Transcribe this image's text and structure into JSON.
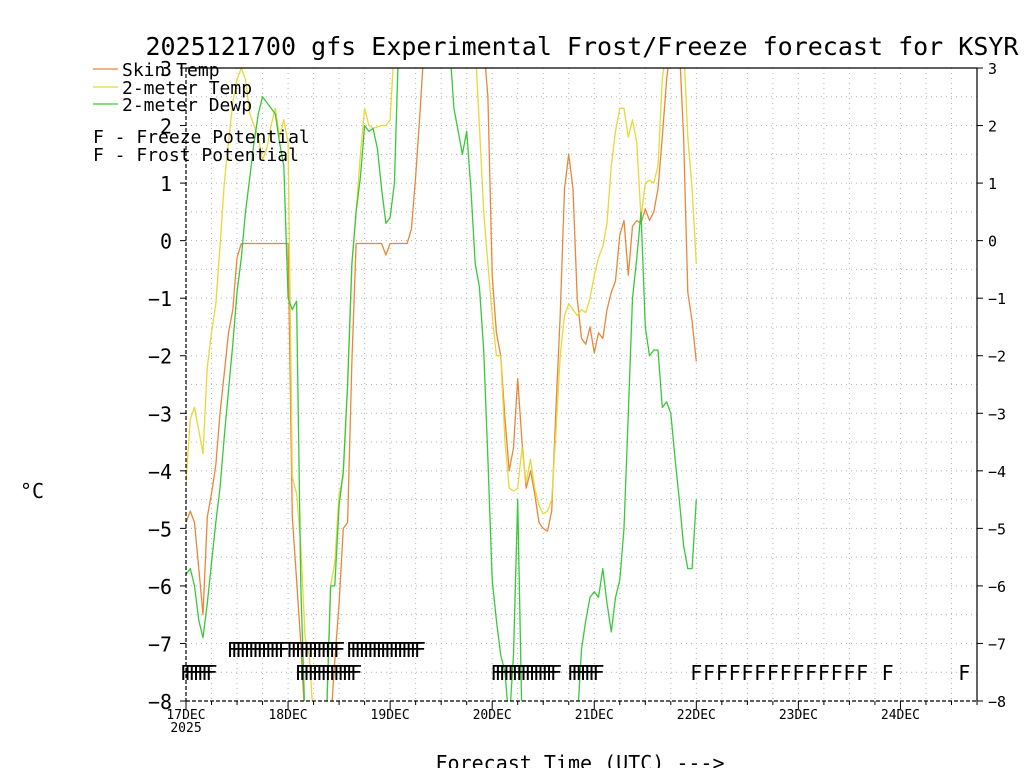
{
  "chart_data": {
    "type": "line",
    "title": "2025121700 gfs Experimental Frost/Freeze forecast for KSYR",
    "ylabel": "°C",
    "xlabel": "Forecast Time (UTC) --->",
    "ylim": [
      -8,
      3
    ],
    "xlim_hours": [
      0,
      186
    ],
    "y_ticks": [
      -8,
      -7,
      -6,
      -5,
      -4,
      -3,
      -2,
      -1,
      0,
      1,
      2,
      3
    ],
    "x_ticks": [
      {
        "h": 0,
        "label": "17DEC",
        "sub": "2025"
      },
      {
        "h": 24,
        "label": "18DEC",
        "sub": ""
      },
      {
        "h": 48,
        "label": "19DEC",
        "sub": ""
      },
      {
        "h": 72,
        "label": "20DEC",
        "sub": ""
      },
      {
        "h": 96,
        "label": "21DEC",
        "sub": ""
      },
      {
        "h": 120,
        "label": "22DEC",
        "sub": ""
      },
      {
        "h": 144,
        "label": "23DEC",
        "sub": ""
      },
      {
        "h": 168,
        "label": "24DEC",
        "sub": ""
      }
    ],
    "grid": true,
    "legend": "top-left",
    "series": [
      {
        "name": "Skin Temp",
        "color": "#e8873a",
        "points": [
          [
            0,
            -4.9
          ],
          [
            1,
            -4.7
          ],
          [
            2,
            -4.9
          ],
          [
            3,
            -5.7
          ],
          [
            4,
            -6.5
          ],
          [
            5,
            -4.8
          ],
          [
            6,
            -4.4
          ],
          [
            7,
            -3.9
          ],
          [
            8,
            -3.0
          ],
          [
            9,
            -2.3
          ],
          [
            10,
            -1.6
          ],
          [
            11,
            -1.2
          ],
          [
            12,
            -0.3
          ],
          [
            13,
            -0.05
          ],
          [
            16,
            -0.05
          ],
          [
            20,
            -0.05
          ],
          [
            23,
            -0.05
          ],
          [
            24,
            -0.05
          ],
          [
            25,
            -4.8
          ],
          [
            26,
            -5.9
          ],
          [
            27,
            -7.0
          ],
          [
            28,
            -8.4
          ],
          [
            32,
            -8.4
          ],
          [
            34,
            -8.4
          ],
          [
            35,
            -7.3
          ],
          [
            36,
            -6.3
          ],
          [
            37,
            -5.0
          ],
          [
            38,
            -4.9
          ],
          [
            39,
            -2.1
          ],
          [
            40,
            -0.05
          ],
          [
            44,
            -0.05
          ],
          [
            46,
            -0.05
          ],
          [
            47,
            -0.25
          ],
          [
            48,
            -0.05
          ],
          [
            52,
            -0.05
          ],
          [
            53,
            0.2
          ],
          [
            54,
            1.1
          ],
          [
            55,
            2.2
          ],
          [
            56,
            3.4
          ],
          [
            70,
            3.4
          ],
          [
            71,
            2.5
          ],
          [
            72,
            -0.6
          ],
          [
            73,
            -1.6
          ],
          [
            74,
            -2.0
          ],
          [
            75,
            -3.1
          ],
          [
            76,
            -4.0
          ],
          [
            77,
            -3.6
          ],
          [
            78,
            -2.4
          ],
          [
            79,
            -3.5
          ],
          [
            80,
            -4.3
          ],
          [
            81,
            -4.0
          ],
          [
            82,
            -4.4
          ],
          [
            83,
            -4.9
          ],
          [
            84,
            -5.0
          ],
          [
            85,
            -5.05
          ],
          [
            86,
            -4.7
          ],
          [
            87,
            -2.9
          ],
          [
            88,
            -1.3
          ],
          [
            89,
            0.9
          ],
          [
            90,
            1.5
          ],
          [
            91,
            0.9
          ],
          [
            92,
            -1.0
          ],
          [
            93,
            -1.7
          ],
          [
            94,
            -1.8
          ],
          [
            95,
            -1.5
          ],
          [
            96,
            -1.95
          ],
          [
            97,
            -1.6
          ],
          [
            98,
            -1.7
          ],
          [
            99,
            -1.2
          ],
          [
            100,
            -0.9
          ],
          [
            101,
            -0.7
          ],
          [
            102,
            0.1
          ],
          [
            103,
            0.35
          ],
          [
            104,
            -0.6
          ],
          [
            105,
            0.25
          ],
          [
            106,
            0.35
          ],
          [
            107,
            0.3
          ],
          [
            108,
            0.55
          ],
          [
            109,
            0.35
          ],
          [
            110,
            0.5
          ],
          [
            111,
            0.9
          ],
          [
            112,
            1.8
          ],
          [
            113,
            2.8
          ],
          [
            114,
            3.4
          ],
          [
            116,
            3.4
          ],
          [
            117,
            1.8
          ],
          [
            118,
            -0.9
          ],
          [
            119,
            -1.4
          ],
          [
            120,
            -2.1
          ]
        ]
      },
      {
        "name": "2-meter Temp",
        "color": "#e8d83a",
        "points": [
          [
            0,
            -4.2
          ],
          [
            1,
            -3.1
          ],
          [
            2,
            -2.9
          ],
          [
            3,
            -3.3
          ],
          [
            4,
            -3.7
          ],
          [
            5,
            -2.2
          ],
          [
            6,
            -1.6
          ],
          [
            7,
            -1.1
          ],
          [
            8,
            -0.1
          ],
          [
            9,
            1.0
          ],
          [
            10,
            1.7
          ],
          [
            11,
            2.4
          ],
          [
            12,
            2.8
          ],
          [
            13,
            3.0
          ],
          [
            14,
            2.8
          ],
          [
            15,
            2.2
          ],
          [
            16,
            2.0
          ],
          [
            17,
            1.8
          ],
          [
            18,
            1.4
          ],
          [
            19,
            1.6
          ],
          [
            20,
            2.0
          ],
          [
            21,
            2.3
          ],
          [
            22,
            1.8
          ],
          [
            23,
            2.1
          ],
          [
            24,
            1.7
          ],
          [
            25,
            -4.1
          ],
          [
            26,
            -4.4
          ],
          [
            27,
            -5.3
          ],
          [
            28,
            -6.9
          ],
          [
            29,
            -7.2
          ],
          [
            30,
            -8.4
          ],
          [
            33,
            -8.4
          ],
          [
            34,
            -6.0
          ],
          [
            35,
            -5.6
          ],
          [
            36,
            -4.4
          ],
          [
            37,
            -4.1
          ],
          [
            38,
            -2.5
          ],
          [
            39,
            -0.4
          ],
          [
            40,
            0.5
          ],
          [
            41,
            1.5
          ],
          [
            42,
            2.3
          ],
          [
            43,
            2.0
          ],
          [
            44,
            1.95
          ],
          [
            46,
            2.0
          ],
          [
            47,
            2.0
          ],
          [
            48,
            2.1
          ],
          [
            49,
            3.4
          ],
          [
            68,
            3.4
          ],
          [
            69,
            2.0
          ],
          [
            70,
            0.5
          ],
          [
            71,
            -0.4
          ],
          [
            72,
            -1.3
          ],
          [
            73,
            -2.0
          ],
          [
            74,
            -2.0
          ],
          [
            75,
            -3.5
          ],
          [
            76,
            -4.3
          ],
          [
            77,
            -4.35
          ],
          [
            78,
            -4.3
          ],
          [
            79,
            -3.6
          ],
          [
            80,
            -4.2
          ],
          [
            81,
            -3.8
          ],
          [
            82,
            -4.3
          ],
          [
            83,
            -4.6
          ],
          [
            84,
            -4.75
          ],
          [
            85,
            -4.7
          ],
          [
            86,
            -4.5
          ],
          [
            87,
            -3.3
          ],
          [
            88,
            -2.0
          ],
          [
            89,
            -1.3
          ],
          [
            90,
            -1.1
          ],
          [
            91,
            -1.2
          ],
          [
            92,
            -1.3
          ],
          [
            93,
            -1.2
          ],
          [
            94,
            -1.25
          ],
          [
            95,
            -1.0
          ],
          [
            96,
            -0.6
          ],
          [
            97,
            -0.3
          ],
          [
            98,
            -0.1
          ],
          [
            99,
            0.3
          ],
          [
            100,
            1.3
          ],
          [
            101,
            1.9
          ],
          [
            102,
            2.3
          ],
          [
            103,
            2.3
          ],
          [
            104,
            1.8
          ],
          [
            105,
            2.1
          ],
          [
            106,
            1.7
          ],
          [
            107,
            0.4
          ],
          [
            108,
            1.0
          ],
          [
            109,
            1.05
          ],
          [
            110,
            1.0
          ],
          [
            111,
            1.3
          ],
          [
            112,
            2.8
          ],
          [
            113,
            3.4
          ],
          [
            117,
            3.4
          ],
          [
            118,
            1.8
          ],
          [
            119,
            0.9
          ],
          [
            120,
            -0.4
          ]
        ]
      },
      {
        "name": "2-meter Dewp",
        "color": "#3ac83a",
        "points": [
          [
            0,
            -5.8
          ],
          [
            1,
            -5.7
          ],
          [
            2,
            -6.0
          ],
          [
            3,
            -6.6
          ],
          [
            4,
            -6.9
          ],
          [
            5,
            -6.3
          ],
          [
            6,
            -5.6
          ],
          [
            7,
            -4.9
          ],
          [
            8,
            -4.3
          ],
          [
            9,
            -3.4
          ],
          [
            10,
            -2.6
          ],
          [
            11,
            -1.8
          ],
          [
            12,
            -0.9
          ],
          [
            13,
            -0.3
          ],
          [
            14,
            0.5
          ],
          [
            15,
            1.1
          ],
          [
            16,
            1.7
          ],
          [
            17,
            2.2
          ],
          [
            18,
            2.5
          ],
          [
            19,
            2.4
          ],
          [
            20,
            2.3
          ],
          [
            21,
            2.2
          ],
          [
            22,
            1.7
          ],
          [
            23,
            1.3
          ],
          [
            24,
            -1.0
          ],
          [
            25,
            -1.2
          ],
          [
            26,
            -1.05
          ],
          [
            27,
            -6.0
          ],
          [
            28,
            -8.4
          ],
          [
            33,
            -8.4
          ],
          [
            34,
            -6.0
          ],
          [
            35,
            -6.0
          ],
          [
            36,
            -4.6
          ],
          [
            37,
            -4.0
          ],
          [
            38,
            -2.5
          ],
          [
            39,
            -0.4
          ],
          [
            40,
            0.5
          ],
          [
            41,
            1.1
          ],
          [
            42,
            2.0
          ],
          [
            43,
            1.9
          ],
          [
            44,
            1.95
          ],
          [
            45,
            1.6
          ],
          [
            46,
            0.9
          ],
          [
            47,
            0.3
          ],
          [
            48,
            0.4
          ],
          [
            49,
            1.0
          ],
          [
            50,
            3.4
          ],
          [
            62,
            3.4
          ],
          [
            63,
            2.3
          ],
          [
            64,
            1.9
          ],
          [
            65,
            1.5
          ],
          [
            66,
            1.9
          ],
          [
            67,
            0.9
          ],
          [
            68,
            -0.4
          ],
          [
            69,
            -0.8
          ],
          [
            70,
            -1.9
          ],
          [
            71,
            -3.8
          ],
          [
            72,
            -5.9
          ],
          [
            73,
            -6.6
          ],
          [
            74,
            -7.2
          ],
          [
            75,
            -7.5
          ],
          [
            76,
            -8.4
          ],
          [
            77,
            -7.2
          ],
          [
            78,
            -4.5
          ],
          [
            79,
            -8.4
          ],
          [
            92,
            -8.4
          ],
          [
            93,
            -7.1
          ],
          [
            94,
            -6.6
          ],
          [
            95,
            -6.2
          ],
          [
            96,
            -6.1
          ],
          [
            97,
            -6.2
          ],
          [
            98,
            -5.7
          ],
          [
            99,
            -6.3
          ],
          [
            100,
            -6.8
          ],
          [
            101,
            -6.2
          ],
          [
            102,
            -5.9
          ],
          [
            103,
            -5.0
          ],
          [
            104,
            -3.0
          ],
          [
            105,
            -1.0
          ],
          [
            106,
            -0.3
          ],
          [
            107,
            0.5
          ],
          [
            108,
            -1.5
          ],
          [
            109,
            -2.0
          ],
          [
            110,
            -1.9
          ],
          [
            111,
            -1.9
          ],
          [
            112,
            -2.9
          ],
          [
            113,
            -2.8
          ],
          [
            114,
            -3.0
          ],
          [
            115,
            -3.8
          ],
          [
            116,
            -4.5
          ],
          [
            117,
            -5.3
          ],
          [
            118,
            -5.7
          ],
          [
            119,
            -5.7
          ],
          [
            120,
            -4.5
          ]
        ]
      }
    ],
    "markers": {
      "freeze": {
        "label": "F - Freeze Potential",
        "glyph": "F",
        "color": "#e040a0",
        "value": -7.5,
        "hours": [
          0,
          1,
          2,
          3,
          4,
          5,
          6,
          27,
          28,
          29,
          30,
          31,
          32,
          33,
          34,
          35,
          36,
          37,
          38,
          39,
          40,
          73,
          74,
          75,
          76,
          77,
          78,
          79,
          80,
          81,
          82,
          83,
          84,
          85,
          86,
          87,
          91,
          92,
          93,
          94,
          95,
          96,
          97,
          120,
          123,
          126,
          129,
          132,
          135,
          138,
          141,
          144,
          147,
          150,
          153,
          156,
          159,
          165,
          183
        ]
      },
      "frost": {
        "label": "F - Frost Potential",
        "glyph": "F",
        "color": "#3a5cd8",
        "value": -7.1,
        "hours": [
          11,
          12,
          13,
          14,
          15,
          16,
          17,
          18,
          19,
          20,
          21,
          22,
          23,
          25,
          26,
          27,
          28,
          29,
          30,
          31,
          32,
          33,
          34,
          35,
          36,
          39,
          40,
          41,
          42,
          43,
          44,
          45,
          46,
          47,
          48,
          49,
          50,
          51,
          52,
          53,
          54,
          55
        ]
      }
    }
  }
}
